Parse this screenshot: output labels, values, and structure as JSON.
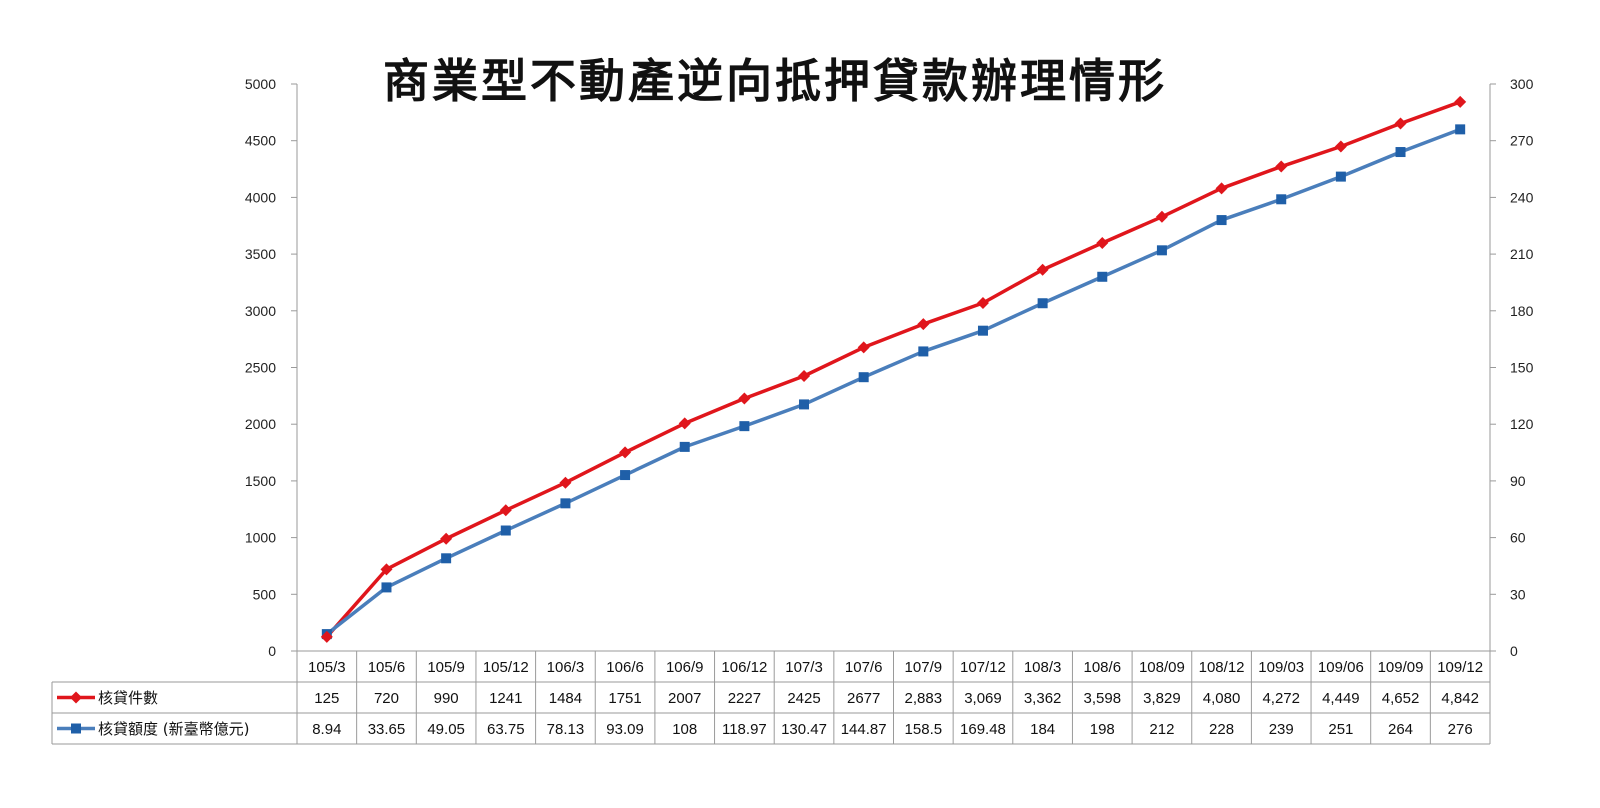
{
  "chart_data": {
    "type": "line",
    "title": "商業型不動產逆向抵押貸款辦理情形",
    "categories": [
      "105/3",
      "105/6",
      "105/9",
      "105/12",
      "106/3",
      "106/6",
      "106/9",
      "106/12",
      "107/3",
      "107/6",
      "107/9",
      "107/12",
      "108/3",
      "108/6",
      "108/09",
      "108/12",
      "109/03",
      "109/06",
      "109/09",
      "109/12"
    ],
    "left_axis": {
      "min": 0,
      "max": 5000,
      "step": 500,
      "ticks": [
        "0",
        "500",
        "1000",
        "1500",
        "2000",
        "2500",
        "3000",
        "3500",
        "4000",
        "4500",
        "5000"
      ]
    },
    "right_axis": {
      "min": 0,
      "max": 300,
      "step": 30,
      "ticks": [
        "0",
        "30",
        "60",
        "90",
        "120",
        "150",
        "180",
        "210",
        "240",
        "270",
        "300"
      ]
    },
    "grid": false,
    "legend_placement": "data-table-left",
    "series": [
      {
        "name": "核貸件數",
        "axis": "left",
        "color": "#e0161c",
        "marker": "diamond",
        "values": [
          125,
          720,
          990,
          1241,
          1484,
          1751,
          2007,
          2227,
          2425,
          2677,
          2883,
          3069,
          3362,
          3598,
          3829,
          4080,
          4272,
          4449,
          4652,
          4842
        ],
        "labels": [
          "125",
          "720",
          "990",
          "1241",
          "1484",
          "1751",
          "2007",
          "2227",
          "2425",
          "2677",
          "2,883",
          "3,069",
          "3,362",
          "3,598",
          "3,829",
          "4,080",
          "4,272",
          "4,449",
          "4,652",
          "4,842"
        ]
      },
      {
        "name": "核貸額度 (新臺幣億元)",
        "axis": "right",
        "color": "#4a7ebb",
        "marker": "square",
        "values": [
          8.94,
          33.65,
          49.05,
          63.75,
          78.13,
          93.09,
          108,
          118.97,
          130.47,
          144.87,
          158.5,
          169.48,
          184,
          198,
          212,
          228,
          239,
          251,
          264,
          276
        ],
        "labels": [
          "8.94",
          "33.65",
          "49.05",
          "63.75",
          "78.13",
          "93.09",
          "108",
          "118.97",
          "130.47",
          "144.87",
          "158.5",
          "169.48",
          "184",
          "198",
          "212",
          "228",
          "239",
          "251",
          "264",
          "276"
        ]
      }
    ]
  }
}
